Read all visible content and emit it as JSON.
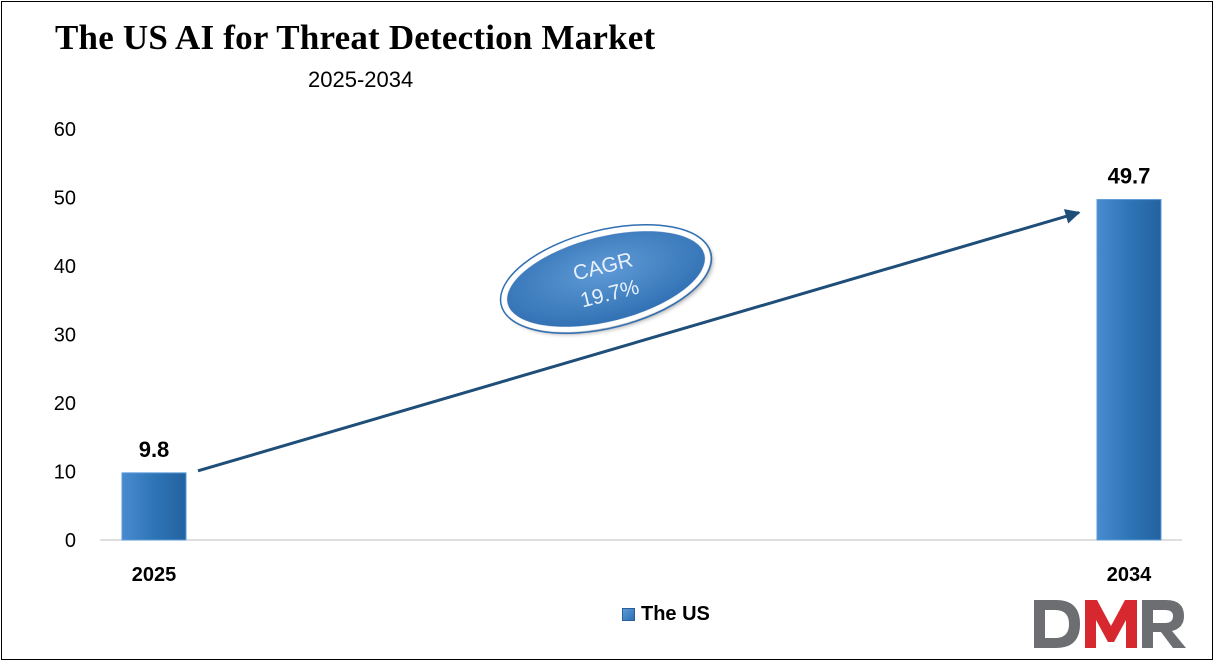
{
  "chart_data": {
    "type": "bar",
    "title": "The US AI for Threat Detection Market",
    "subtitle": "2025-2034",
    "categories": [
      "2025",
      "2034"
    ],
    "series": [
      {
        "name": "The US",
        "values": [
          9.8,
          49.7
        ],
        "color": "#2e75b6"
      }
    ],
    "data_labels": [
      "9.8",
      "49.7"
    ],
    "y_ticks": [
      "0",
      "10",
      "20",
      "30",
      "40",
      "50",
      "60"
    ],
    "ylim": [
      0,
      60
    ],
    "grid": false,
    "legend_position": "bottom",
    "annotation": {
      "line1": "CAGR",
      "line2": "19.7%"
    }
  },
  "logo": {
    "text": "DMR",
    "colors": {
      "d": "#6d6e71",
      "m": "#d7282f",
      "r": "#6d6e71"
    }
  }
}
